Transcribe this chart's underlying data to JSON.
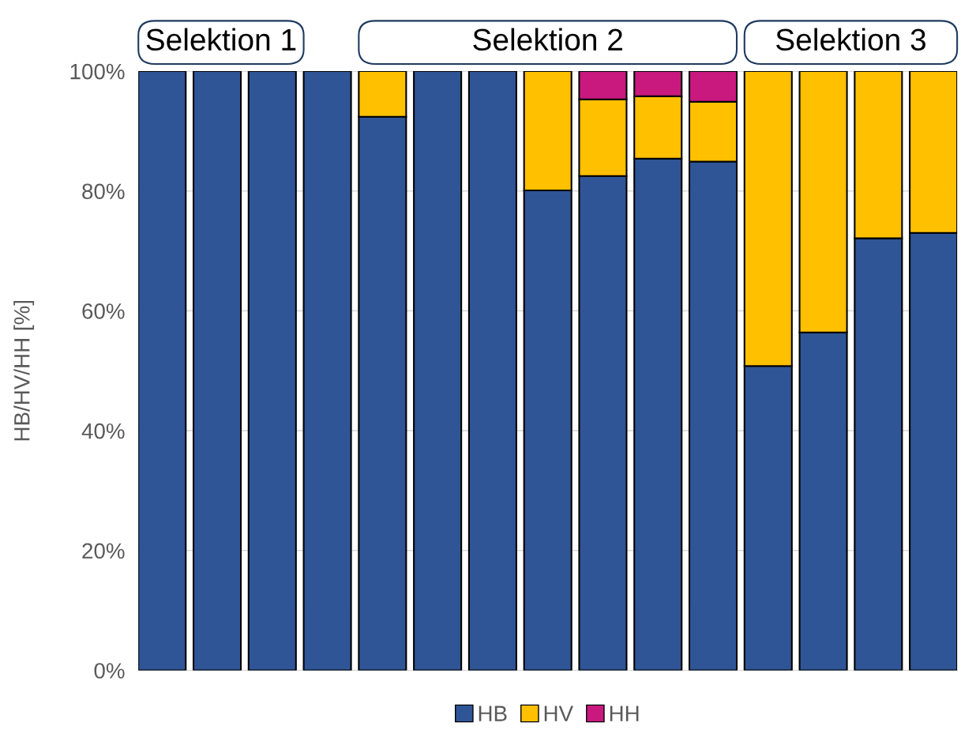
{
  "chart_data": {
    "type": "bar",
    "stacked": true,
    "ylabel": "HB/HV/HH [%]",
    "categories": [
      null,
      null,
      null,
      null,
      null,
      null,
      null,
      null,
      null,
      null,
      null,
      null,
      null,
      null,
      null
    ],
    "series": [
      {
        "name": "HB",
        "color": "#2f5597",
        "values": [
          100,
          100,
          100,
          100,
          92.4,
          100,
          100,
          80.1,
          82.5,
          85.4,
          84.9,
          50.8,
          56.4,
          72.1,
          73.0
        ]
      },
      {
        "name": "HV",
        "color": "#ffc000",
        "values": [
          0,
          0,
          0,
          0,
          7.6,
          0,
          0,
          19.9,
          12.8,
          10.4,
          10.0,
          49.2,
          43.6,
          27.9,
          27.0
        ]
      },
      {
        "name": "HH",
        "color": "#c9197f",
        "values": [
          0,
          0,
          0,
          0,
          0,
          0,
          0,
          0,
          4.7,
          4.2,
          5.1,
          0,
          0,
          0,
          0
        ]
      }
    ],
    "ylim": [
      0,
      100
    ],
    "yticks": [
      {
        "value": 0,
        "label": "0%"
      },
      {
        "value": 20,
        "label": "20%"
      },
      {
        "value": 40,
        "label": "40%"
      },
      {
        "value": 60,
        "label": "60%"
      },
      {
        "value": 80,
        "label": "80%"
      },
      {
        "value": 100,
        "label": "100%"
      }
    ],
    "grid": "y",
    "legend": "bottom",
    "annotations": [
      "Selektion 1",
      "Selektion 2",
      "Selektion 3"
    ]
  }
}
